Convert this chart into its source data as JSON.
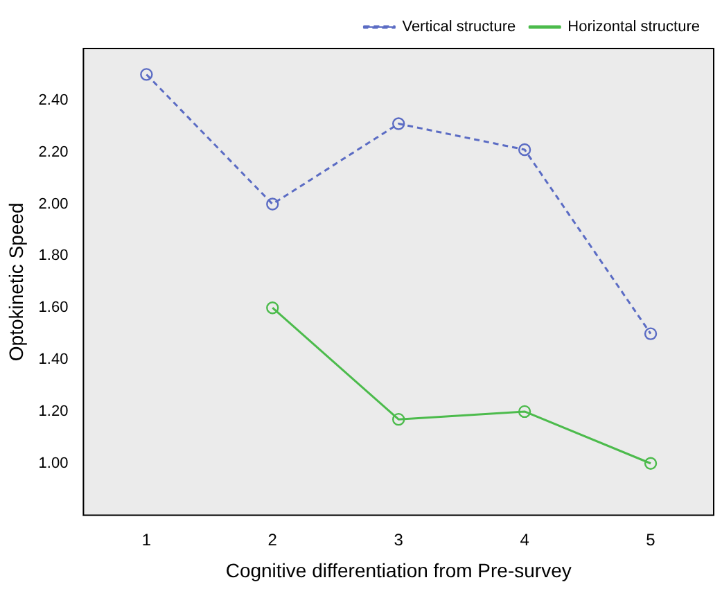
{
  "chart_data": {
    "type": "line",
    "xlabel": "Cognitive differentiation from Pre-survey",
    "ylabel": "Optokinetic Speed",
    "categories": [
      "1",
      "2",
      "3",
      "4",
      "5"
    ],
    "series": [
      {
        "name": "Vertical structure",
        "color": "#5b6cc4",
        "line_style": "dashed",
        "values": [
          2.5,
          2.0,
          2.31,
          2.21,
          1.5
        ]
      },
      {
        "name": "Horizontal structure",
        "color": "#4cbb4c",
        "line_style": "solid",
        "values": [
          null,
          1.6,
          1.17,
          1.2,
          1.0
        ]
      }
    ],
    "ylim": [
      0.8,
      2.6
    ],
    "yticks": [
      {
        "value": 1.0,
        "label": "1.00"
      },
      {
        "value": 1.2,
        "label": "1.20"
      },
      {
        "value": 1.4,
        "label": "1.40"
      },
      {
        "value": 1.6,
        "label": "1.60"
      },
      {
        "value": 1.8,
        "label": "1.80"
      },
      {
        "value": 2.0,
        "label": "2.00"
      },
      {
        "value": 2.2,
        "label": "2.20"
      },
      {
        "value": 2.4,
        "label": "2.40"
      }
    ],
    "grid": false,
    "legend": "top right",
    "marker": "circle"
  }
}
